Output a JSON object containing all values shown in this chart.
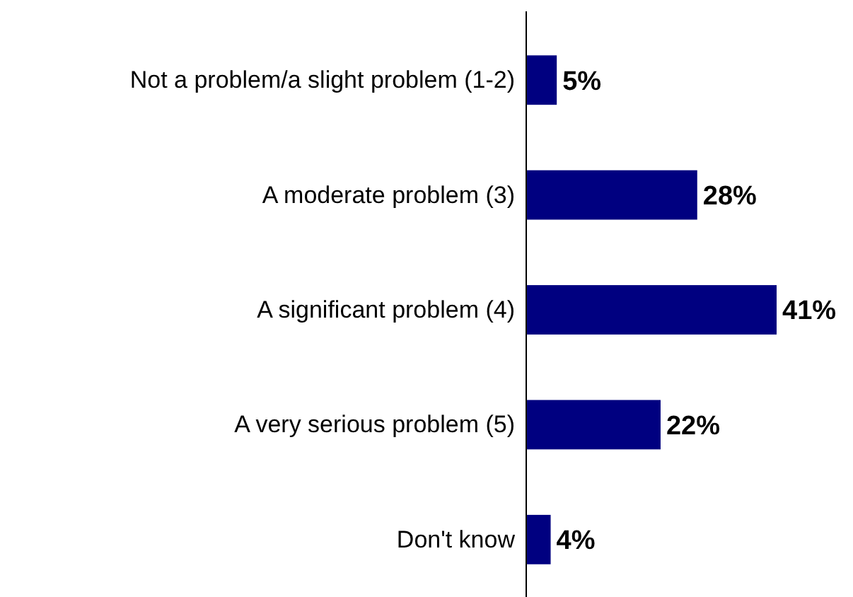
{
  "chart_data": {
    "type": "bar",
    "orientation": "horizontal",
    "categories": [
      "Not a problem/a slight problem (1-2)",
      "A moderate problem (3)",
      "A significant problem (4)",
      "A very serious problem (5)",
      "Don't know"
    ],
    "values": [
      5,
      28,
      41,
      22,
      4
    ],
    "color": "#000080",
    "value_labels": [
      "5%",
      "28%",
      "41%",
      "22%",
      "4%"
    ]
  }
}
